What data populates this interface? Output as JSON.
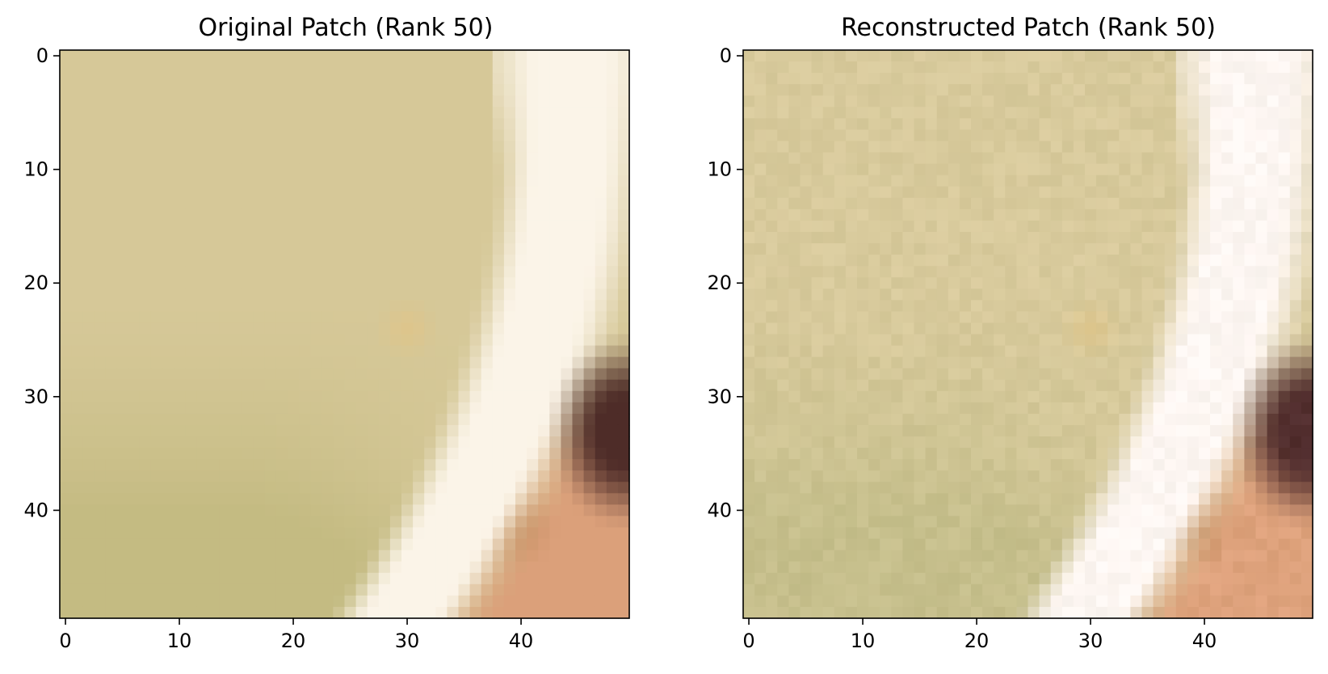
{
  "figure": {
    "panels": [
      {
        "title": "Original Patch (Rank 50)"
      },
      {
        "title": "Reconstructed Patch (Rank 50)"
      }
    ]
  },
  "chart_data": [
    {
      "type": "heatmap",
      "title": "Original Patch (Rank 50)",
      "xlabel": "",
      "ylabel": "",
      "xlim": [
        -0.5,
        49.5
      ],
      "ylim": [
        49.5,
        -0.5
      ],
      "y_inverted": true,
      "grid": false,
      "xticks": [
        0,
        10,
        20,
        30,
        40
      ],
      "yticks": [
        0,
        10,
        20,
        30,
        40
      ],
      "image_size": [
        50,
        50
      ],
      "colors": {
        "background": "#d6c898",
        "lower_left": "#c4bb82",
        "white_band": "#fbf4e8",
        "skin": "#dba07a",
        "skin_dark": "#b37344",
        "dark_hair": "#4e2c28",
        "highlight_orange": "#e7c27e"
      },
      "noise": 0
    },
    {
      "type": "heatmap",
      "title": "Reconstructed Patch (Rank 50)",
      "xlabel": "",
      "ylabel": "",
      "xlim": [
        -0.5,
        49.5
      ],
      "ylim": [
        49.5,
        -0.5
      ],
      "y_inverted": true,
      "grid": false,
      "xticks": [
        0,
        10,
        20,
        30,
        40
      ],
      "yticks": [
        0,
        10,
        20,
        30,
        40
      ],
      "image_size": [
        50,
        50
      ],
      "colors": {
        "background": "#d8ca9c",
        "lower_left": "#c6bf8c",
        "white_band": "#fdf6f2",
        "skin": "#dea27c",
        "skin_dark": "#b47546",
        "dark_hair": "#522e2e",
        "highlight_orange": "#e7c480"
      },
      "noise": 6
    }
  ]
}
